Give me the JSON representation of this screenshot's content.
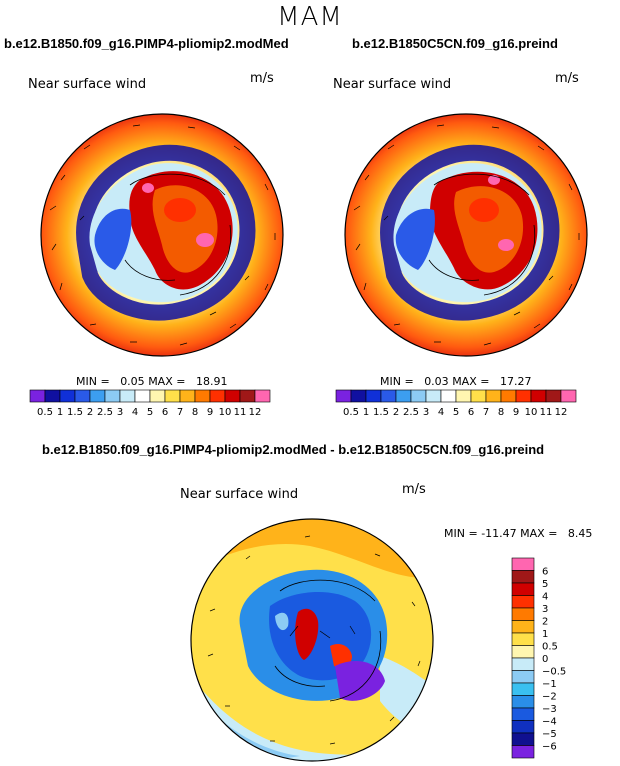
{
  "figure": {
    "title": "MAM",
    "panels": [
      {
        "case": "b.e12.B1850.f09_g16.PIMP4-pliomip2.modMed",
        "variable": "Near surface wind",
        "units": "m/s",
        "min_label": "MIN =",
        "min_value": "0.05",
        "max_label": "MAX =",
        "max_value": "18.91"
      },
      {
        "case": "b.e12.B1850C5CN.f09_g16.preind",
        "variable": "Near surface wind",
        "units": "m/s",
        "min_label": "MIN =",
        "min_value": "0.03",
        "max_label": "MAX =",
        "max_value": "17.27"
      }
    ],
    "diff_panel": {
      "case": "b.e12.B1850.f09_g16.PIMP4-pliomip2.modMed - b.e12.B1850C5CN.f09_g16.preind",
      "variable": "Near surface wind",
      "units": "m/s",
      "min_label": "MIN =",
      "min_value": "-11.47",
      "max_label": "MAX =",
      "max_value": "8.45"
    },
    "abs_colorbar": {
      "labels": [
        "0.5",
        "1",
        "1.5",
        "2",
        "2.5",
        "3",
        "4",
        "5",
        "6",
        "7",
        "8",
        "9",
        "10",
        "11",
        "12"
      ],
      "colors": [
        "#7a22e0",
        "#1010a0",
        "#1030d8",
        "#2a5ae8",
        "#3c9ef0",
        "#8ccbf4",
        "#c8ebf8",
        "#ffffff",
        "#fff6b0",
        "#ffe04a",
        "#ffb31a",
        "#ff7a00",
        "#ff3000",
        "#d00000",
        "#a01818",
        "#ff66b0"
      ]
    },
    "diff_colorbar": {
      "labels": [
        "6",
        "5",
        "4",
        "3",
        "2",
        "1",
        "0.5",
        "0",
        "−0.5",
        "−1",
        "−2",
        "−3",
        "−4",
        "−5",
        "−6"
      ],
      "colors": [
        "#ff66b0",
        "#a01818",
        "#d00000",
        "#ff3000",
        "#ff7a00",
        "#ffb31a",
        "#ffe04a",
        "#fff6b0",
        "#c8ebf8",
        "#8ccbf4",
        "#3ac0f0",
        "#2a8ee8",
        "#1a5ae0",
        "#1030c0",
        "#101090",
        "#7a22e0"
      ]
    }
  }
}
